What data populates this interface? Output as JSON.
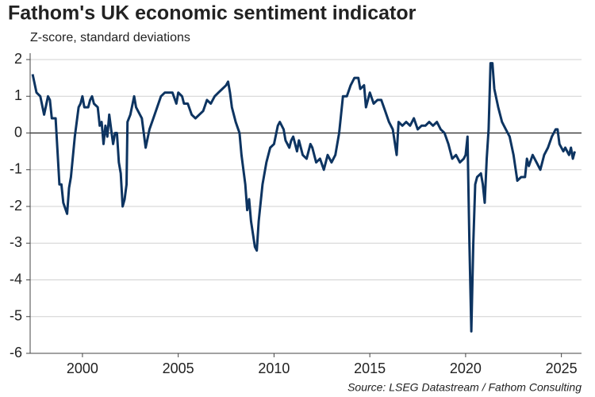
{
  "chart_data": {
    "type": "line",
    "title": "Fathom's UK economic sentiment indicator",
    "subtitle": "Z-score, standard deviations",
    "source": "Source: LSEG Datastream / Fathom Consulting",
    "xlim": [
      1997.27,
      2026.05
    ],
    "xticks": [
      2000,
      2005,
      2010,
      2015,
      2020,
      2025
    ],
    "ylim": [
      -6,
      2
    ],
    "yticks": [
      -6,
      -5,
      -4,
      -3,
      -2,
      -1,
      0,
      1,
      2
    ],
    "grid": true,
    "x": [
      1997.4,
      1997.6,
      1997.8,
      1998.0,
      1998.2,
      1998.3,
      1998.4,
      1998.6,
      1998.7,
      1998.8,
      1998.9,
      1999.0,
      1999.2,
      1999.3,
      1999.4,
      1999.6,
      1999.8,
      1999.9,
      2000.0,
      2000.1,
      2000.3,
      2000.4,
      2000.5,
      2000.6,
      2000.8,
      2000.9,
      2001.0,
      2001.1,
      2001.2,
      2001.3,
      2001.4,
      2001.5,
      2001.6,
      2001.7,
      2001.8,
      2001.9,
      2002.0,
      2002.1,
      2002.2,
      2002.3,
      2002.35,
      2002.5,
      2002.7,
      2002.8,
      2003.0,
      2003.1,
      2003.2,
      2003.3,
      2003.5,
      2003.7,
      2003.9,
      2004.1,
      2004.3,
      2004.5,
      2004.7,
      2004.9,
      2005.0,
      2005.2,
      2005.3,
      2005.5,
      2005.7,
      2005.9,
      2006.1,
      2006.3,
      2006.5,
      2006.7,
      2006.9,
      2007.1,
      2007.3,
      2007.5,
      2007.6,
      2007.7,
      2007.8,
      2008.0,
      2008.2,
      2008.3,
      2008.5,
      2008.6,
      2008.7,
      2008.8,
      2009.0,
      2009.1,
      2009.2,
      2009.4,
      2009.6,
      2009.8,
      2010.0,
      2010.2,
      2010.3,
      2010.5,
      2010.6,
      2010.8,
      2010.9,
      2011.0,
      2011.2,
      2011.3,
      2011.5,
      2011.7,
      2011.9,
      2012.0,
      2012.2,
      2012.4,
      2012.6,
      2012.8,
      2013.0,
      2013.2,
      2013.4,
      2013.6,
      2013.8,
      2014.0,
      2014.2,
      2014.4,
      2014.5,
      2014.7,
      2014.8,
      2015.0,
      2015.2,
      2015.4,
      2015.6,
      2015.8,
      2016.0,
      2016.2,
      2016.4,
      2016.5,
      2016.7,
      2016.9,
      2017.1,
      2017.3,
      2017.5,
      2017.7,
      2017.9,
      2018.1,
      2018.3,
      2018.5,
      2018.7,
      2018.9,
      2019.1,
      2019.3,
      2019.5,
      2019.7,
      2019.9,
      2020.0,
      2020.1,
      2020.2,
      2020.3,
      2020.4,
      2020.5,
      2020.6,
      2020.8,
      2020.9,
      2021.0,
      2021.1,
      2021.2,
      2021.3,
      2021.4,
      2021.5,
      2021.7,
      2021.9,
      2022.1,
      2022.3,
      2022.5,
      2022.7,
      2022.9,
      2023.1,
      2023.2,
      2023.3,
      2023.5,
      2023.7,
      2023.9,
      2024.1,
      2024.3,
      2024.5,
      2024.7,
      2024.8,
      2024.9,
      2025.1,
      2025.2,
      2025.4,
      2025.5,
      2025.6,
      2025.7
    ],
    "series": [
      {
        "color": "#0d3461",
        "values": [
          1.6,
          1.1,
          1.0,
          0.5,
          1.0,
          0.9,
          0.4,
          0.4,
          -0.5,
          -1.4,
          -1.4,
          -1.9,
          -2.2,
          -1.5,
          -1.2,
          -0.1,
          0.7,
          0.8,
          1.0,
          0.7,
          0.7,
          0.9,
          1.0,
          0.8,
          0.7,
          0.2,
          0.3,
          -0.3,
          0.2,
          -0.1,
          0.5,
          0.1,
          -0.3,
          0.0,
          0.0,
          -0.8,
          -1.1,
          -2.0,
          -1.8,
          -1.4,
          0.3,
          0.5,
          1.0,
          0.7,
          0.5,
          0.4,
          0.0,
          -0.4,
          0.1,
          0.4,
          0.7,
          1.0,
          1.1,
          1.1,
          1.1,
          0.8,
          1.1,
          1.0,
          0.8,
          0.8,
          0.5,
          0.4,
          0.5,
          0.6,
          0.9,
          0.8,
          1.0,
          1.1,
          1.2,
          1.3,
          1.4,
          1.1,
          0.7,
          0.3,
          0.0,
          -0.6,
          -1.4,
          -2.1,
          -1.8,
          -2.4,
          -3.1,
          -3.2,
          -2.4,
          -1.4,
          -0.8,
          -0.4,
          -0.3,
          0.2,
          0.3,
          0.1,
          -0.2,
          -0.4,
          -0.2,
          -0.1,
          -0.5,
          -0.2,
          -0.6,
          -0.7,
          -0.3,
          -0.4,
          -0.8,
          -0.7,
          -1.0,
          -0.6,
          -0.8,
          -0.6,
          0.0,
          1.0,
          1.0,
          1.3,
          1.5,
          1.5,
          1.2,
          1.3,
          0.7,
          1.1,
          0.8,
          0.9,
          0.9,
          0.6,
          0.3,
          0.1,
          -0.6,
          0.3,
          0.2,
          0.3,
          0.2,
          0.4,
          0.1,
          0.2,
          0.2,
          0.3,
          0.2,
          0.3,
          0.1,
          0.0,
          -0.3,
          -0.7,
          -0.6,
          -0.8,
          -0.7,
          -0.6,
          -0.1,
          -3.0,
          -5.4,
          -3.0,
          -1.4,
          -1.2,
          -1.1,
          -1.4,
          -1.9,
          -0.7,
          0.1,
          1.9,
          1.9,
          1.2,
          0.7,
          0.3,
          0.1,
          -0.1,
          -0.6,
          -1.3,
          -1.2,
          -1.2,
          -0.7,
          -0.9,
          -0.6,
          -0.8,
          -1.0,
          -0.6,
          -0.4,
          -0.1,
          0.1,
          0.1,
          -0.3,
          -0.5,
          -0.4,
          -0.6,
          -0.4,
          -0.7,
          -0.5
        ]
      }
    ]
  }
}
